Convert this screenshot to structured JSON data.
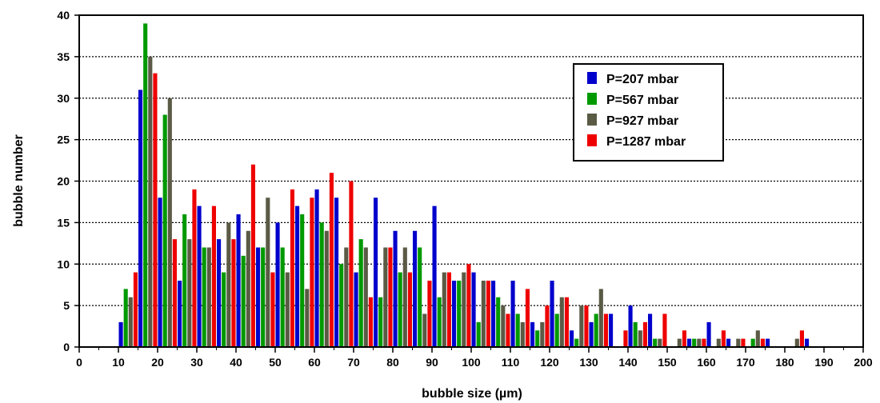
{
  "chart_data": {
    "type": "bar",
    "xlabel": "bubble size (µm)",
    "ylabel": "bubble number",
    "xlim": [
      0,
      200
    ],
    "ylim": [
      0,
      40
    ],
    "xticks": [
      0,
      10,
      20,
      30,
      40,
      50,
      60,
      70,
      80,
      90,
      100,
      110,
      120,
      130,
      140,
      150,
      160,
      170,
      180,
      190,
      200
    ],
    "yticks": [
      0,
      5,
      10,
      15,
      20,
      25,
      30,
      35,
      40
    ],
    "grid": "horizontal-dotted",
    "legend_placement": "top-right",
    "categories": [
      12.5,
      17.5,
      22.5,
      27.5,
      32.5,
      37.5,
      42.5,
      47.5,
      52.5,
      57.5,
      62.5,
      67.5,
      72.5,
      77.5,
      82.5,
      87.5,
      92.5,
      97.5,
      102.5,
      107.5,
      112.5,
      117.5,
      122.5,
      127.5,
      132.5,
      137.5,
      142.5,
      147.5,
      152.5,
      157.5,
      162.5,
      167.5,
      172.5,
      177.5,
      182.5,
      187.5
    ],
    "series": [
      {
        "name": "P=207 mbar",
        "color": "#0000cc",
        "values": [
          3,
          31,
          18,
          8,
          17,
          13,
          16,
          12,
          15,
          17,
          19,
          18,
          9,
          18,
          14,
          14,
          17,
          8,
          9,
          8,
          8,
          3,
          8,
          2,
          3,
          4,
          5,
          4,
          0,
          1,
          3,
          1,
          0,
          1,
          0,
          1
        ]
      },
      {
        "name": "P=567 mbar",
        "color": "#009900",
        "values": [
          7,
          39,
          28,
          16,
          12,
          9,
          11,
          12,
          12,
          16,
          15,
          10,
          13,
          6,
          9,
          12,
          6,
          8,
          3,
          6,
          4,
          2,
          4,
          1,
          4,
          0,
          3,
          1,
          0,
          1,
          0,
          0,
          1,
          0,
          0,
          0
        ]
      },
      {
        "name": "P=927 mbar",
        "color": "#5a5a45",
        "values": [
          6,
          35,
          30,
          13,
          12,
          15,
          14,
          18,
          9,
          7,
          14,
          12,
          12,
          12,
          12,
          4,
          9,
          9,
          8,
          5,
          3,
          3,
          6,
          5,
          7,
          0,
          2,
          1,
          1,
          1,
          1,
          1,
          2,
          0,
          1,
          0
        ]
      },
      {
        "name": "P=1287 mbar",
        "color": "#ee0000",
        "values": [
          9,
          33,
          13,
          19,
          17,
          13,
          22,
          9,
          19,
          18,
          21,
          20,
          6,
          12,
          9,
          8,
          9,
          10,
          8,
          4,
          7,
          5,
          6,
          5,
          4,
          2,
          3,
          4,
          2,
          1,
          2,
          1,
          1,
          0,
          2,
          0
        ]
      }
    ]
  }
}
